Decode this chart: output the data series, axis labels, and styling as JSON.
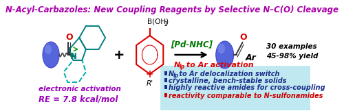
{
  "title": "N-Acyl-Carbazoles: New Coupling Reagents by Selective N–C(O) Cleavage",
  "title_color": "#aa00aa",
  "title_fontsize": 8.5,
  "bg_color": "#ffffff",
  "box_color": "#c0e8f0",
  "bullet_items": [
    {
      "marker_color": "#1a2d8a",
      "text_pre": "N",
      "text_sub": "lp",
      "text_post": " to Ar delocalization switch",
      "text_color": "#1a2d8a"
    },
    {
      "marker_color": "#1a2d8a",
      "text_pre": "crystalline, bench-stable solids",
      "text_sub": "",
      "text_post": "",
      "text_color": "#1a2d8a"
    },
    {
      "marker_color": "#1a2d8a",
      "text_pre": "highly reactive amides for cross-coupling",
      "text_sub": "",
      "text_post": "",
      "text_color": "#1a2d8a"
    },
    {
      "marker_color": "#cc0000",
      "text_pre": "reactivity comparable to N-sulfonamides",
      "text_sub": "",
      "text_post": "",
      "text_color": "#cc0000"
    }
  ],
  "teal": "#008080",
  "teal_dark": "#006666",
  "cyan_dash": "#00aaaa",
  "blue_ball": "#4444cc",
  "blue_ball2": "#5566dd",
  "red": "#dd0000",
  "green_cat": "#007700",
  "purple": "#9900bb"
}
